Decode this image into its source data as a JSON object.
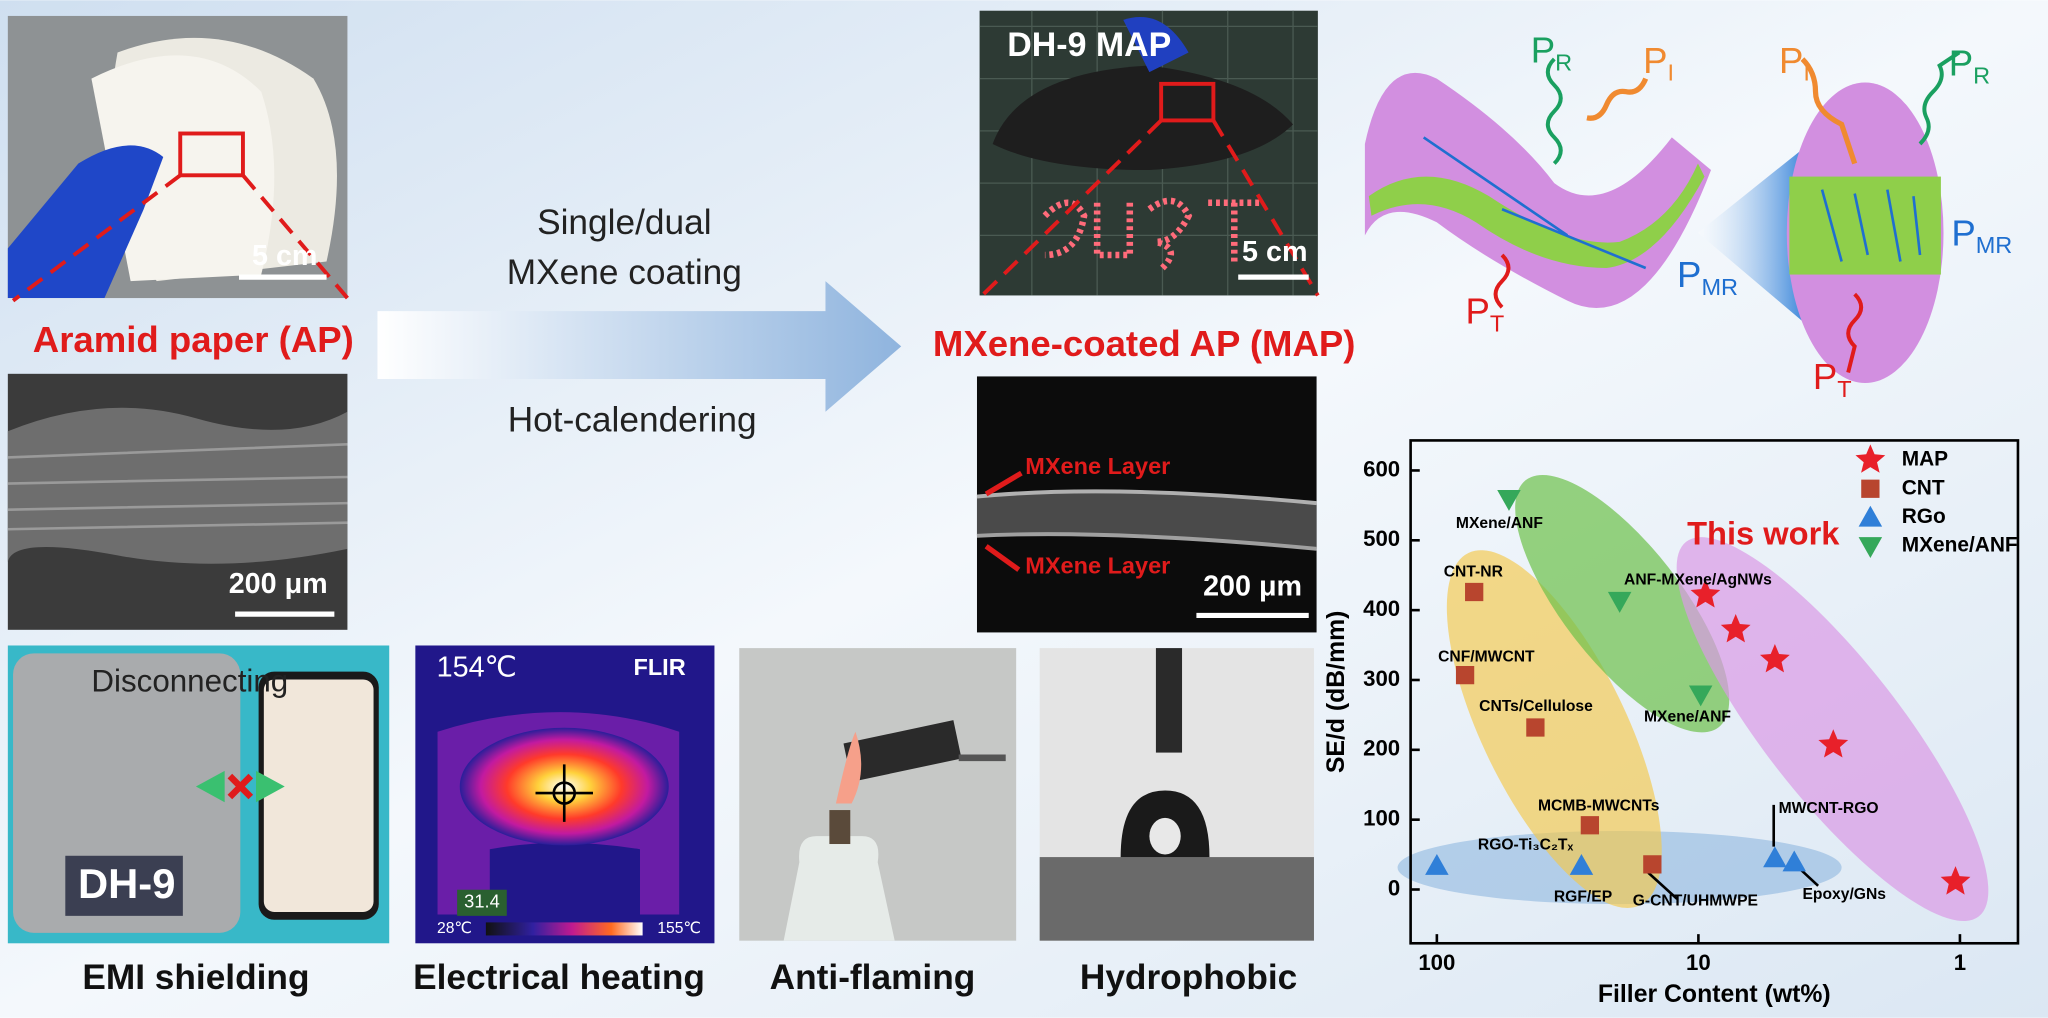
{
  "panels": {
    "aramid_photo": {
      "scale_bar": "5 cm"
    },
    "aramid_label": "Aramid paper (AP)",
    "aramid_sem": {
      "scale_bar": "200 μm"
    },
    "process": {
      "top": [
        "Single/dual",
        "MXene coating"
      ],
      "bottom": "Hot-calendering"
    },
    "map_photo": {
      "title": "DH-9 MAP",
      "scale_bar": "5 cm"
    },
    "map_label": "MXene-coated AP (MAP)",
    "map_sem": {
      "layers": [
        "MXene Layer",
        "MXene Layer"
      ],
      "scale_bar": "200 μm"
    }
  },
  "mechanism": {
    "labels": [
      {
        "base": "P",
        "sub": "R"
      },
      {
        "base": "P",
        "sub": "I"
      },
      {
        "base": "P",
        "sub": "MR"
      },
      {
        "base": "P",
        "sub": "T"
      },
      {
        "base": "P",
        "sub": "I"
      },
      {
        "base": "P",
        "sub": "R"
      },
      {
        "base": "P",
        "sub": "MR"
      },
      {
        "base": "P",
        "sub": "T"
      }
    ]
  },
  "applications": [
    {
      "caption": "EMI shielding",
      "texts": [
        "Disconnecting",
        "DH-9"
      ]
    },
    {
      "caption": "Electrical heating",
      "texts": [
        "154℃",
        "FLIR",
        "31.4",
        "28℃",
        "155℃"
      ]
    },
    {
      "caption": "Anti-flaming"
    },
    {
      "caption": "Hydrophobic"
    }
  ],
  "chart_data": {
    "type": "scatter",
    "xlabel": "Filler Content (wt%)",
    "ylabel": "SE/d (dB/mm)",
    "xscale": "log",
    "xlim": [
      126,
      0.6
    ],
    "xticks": [
      100,
      10,
      1
    ],
    "ylim": [
      -77,
      643
    ],
    "yticks": [
      0,
      100,
      200,
      300,
      400,
      500,
      600
    ],
    "legend": "upper right",
    "series": [
      {
        "name": "MAP",
        "color": "#e8202a",
        "marker": "star",
        "x": [
          9.4,
          7.2,
          5.1,
          3.05,
          1.04
        ],
        "values": [
          422,
          372,
          329,
          207,
          11
        ]
      },
      {
        "name": "CNT",
        "color": "#b8452e",
        "marker": "square",
        "x": [
          72,
          78,
          42,
          26,
          15
        ],
        "values": [
          426,
          307,
          232,
          92,
          36
        ]
      },
      {
        "name": "RGo",
        "color": "#2f7fd8",
        "marker": "triangle-up",
        "x": [
          100,
          28,
          5.1,
          4.3
        ],
        "values": [
          34,
          34,
          45,
          39
        ]
      },
      {
        "name": "MXene/ANF",
        "color": "#35a85a",
        "marker": "triangle-down",
        "x": [
          53,
          20,
          9.8
        ],
        "values": [
          559,
          413,
          279
        ]
      }
    ],
    "annotations": [
      "This work",
      "MXene/ANF",
      "ANF-MXene/AgNWs",
      "CNT-NR",
      "CNF/MWCNT",
      "CNTs/Cellulose",
      "MXene/ANF",
      "MCMB-MWCNTs",
      "MWCNT-RGO",
      "RGO-Ti₃C₂Tₓ",
      "RGF/EP",
      "G-CNT/UHMWPE",
      "Epoxy/GNs"
    ]
  }
}
